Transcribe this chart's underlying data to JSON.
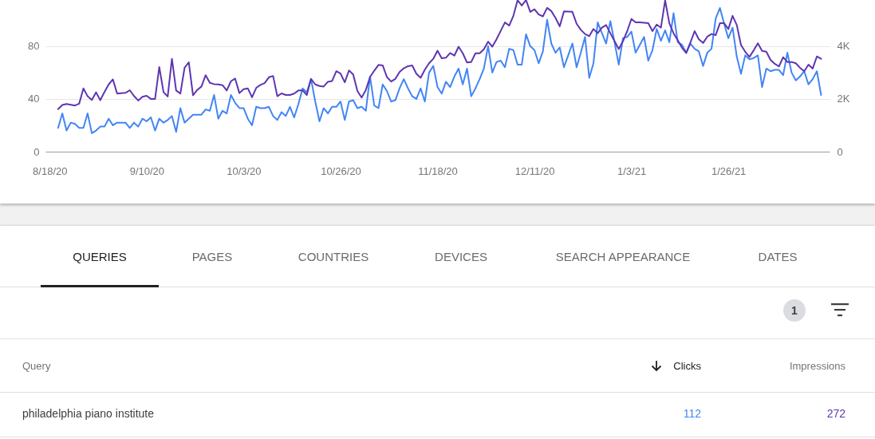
{
  "chart_data": [
    {
      "type": "line",
      "x": [
        "2020-08-20",
        "2020-08-21",
        "2020-08-22",
        "2020-08-23",
        "2020-08-24",
        "2020-08-25",
        "2020-08-26",
        "2020-08-27",
        "2020-08-28",
        "2020-08-29",
        "2020-08-30",
        "2020-08-31",
        "2020-09-01",
        "2020-09-02",
        "2020-09-03",
        "2020-09-04",
        "2020-09-05",
        "2020-09-06",
        "2020-09-07",
        "2020-09-08",
        "2020-09-09",
        "2020-09-10",
        "2020-09-11",
        "2020-09-12",
        "2020-09-13",
        "2020-09-14",
        "2020-09-15",
        "2020-09-16",
        "2020-09-17",
        "2020-09-18",
        "2020-09-19",
        "2020-09-20",
        "2020-09-21",
        "2020-09-22",
        "2020-09-23",
        "2020-09-24",
        "2020-09-25",
        "2020-09-26",
        "2020-09-27",
        "2020-09-28",
        "2020-09-29",
        "2020-09-30",
        "2020-10-01",
        "2020-10-02",
        "2020-10-03",
        "2020-10-04",
        "2020-10-05",
        "2020-10-06",
        "2020-10-07",
        "2020-10-08",
        "2020-10-09",
        "2020-10-10",
        "2020-10-11",
        "2020-10-12",
        "2020-10-13",
        "2020-10-14",
        "2020-10-15",
        "2020-10-16",
        "2020-10-17",
        "2020-10-18",
        "2020-10-19",
        "2020-10-20",
        "2020-10-21",
        "2020-10-22",
        "2020-10-23",
        "2020-10-24",
        "2020-10-25",
        "2020-10-26",
        "2020-10-27",
        "2020-10-28",
        "2020-10-29",
        "2020-10-30",
        "2020-10-31",
        "2020-11-01",
        "2020-11-02",
        "2020-11-03",
        "2020-11-04",
        "2020-11-05",
        "2020-11-06",
        "2020-11-07",
        "2020-11-08",
        "2020-11-09",
        "2020-11-10",
        "2020-11-11",
        "2020-11-12",
        "2020-11-13",
        "2020-11-14",
        "2020-11-15",
        "2020-11-16",
        "2020-11-17",
        "2020-11-18",
        "2020-11-19",
        "2020-11-20",
        "2020-11-21",
        "2020-11-22",
        "2020-11-23",
        "2020-11-24",
        "2020-11-25",
        "2020-11-26",
        "2020-11-27",
        "2020-11-28",
        "2020-11-29",
        "2020-11-30",
        "2020-12-01",
        "2020-12-02",
        "2020-12-03",
        "2020-12-04",
        "2020-12-05",
        "2020-12-06",
        "2020-12-07",
        "2020-12-08",
        "2020-12-09",
        "2020-12-10",
        "2020-12-11",
        "2020-12-12",
        "2020-12-13",
        "2020-12-14",
        "2020-12-15",
        "2020-12-16",
        "2020-12-17",
        "2020-12-18",
        "2020-12-19",
        "2020-12-20",
        "2020-12-21",
        "2020-12-22",
        "2020-12-23",
        "2020-12-24",
        "2020-12-25",
        "2020-12-26",
        "2020-12-27",
        "2020-12-28",
        "2020-12-29",
        "2020-12-30",
        "2020-12-31",
        "2021-01-01",
        "2021-01-02",
        "2021-01-03",
        "2021-01-04",
        "2021-01-05",
        "2021-01-06",
        "2021-01-07",
        "2021-01-08",
        "2021-01-09",
        "2021-01-10",
        "2021-01-11",
        "2021-01-12",
        "2021-01-13",
        "2021-01-14",
        "2021-01-15",
        "2021-01-16",
        "2021-01-17",
        "2021-01-18",
        "2021-01-19",
        "2021-01-20",
        "2021-01-21",
        "2021-01-22",
        "2021-01-23",
        "2021-01-24",
        "2021-01-25",
        "2021-01-26",
        "2021-01-27",
        "2021-01-28",
        "2021-01-29",
        "2021-01-30",
        "2021-01-31",
        "2021-02-01",
        "2021-02-02",
        "2021-02-03",
        "2021-02-04",
        "2021-02-05",
        "2021-02-06",
        "2021-02-07",
        "2021-02-08",
        "2021-02-09",
        "2021-02-10",
        "2021-02-11",
        "2021-02-12",
        "2021-02-13",
        "2021-02-14",
        "2021-02-15",
        "2021-02-16",
        "2021-02-17"
      ],
      "series": [
        {
          "color": "#4285f4",
          "values": [
            18,
            29,
            16,
            22,
            21,
            18,
            18,
            29,
            14,
            16,
            19,
            19,
            25,
            20,
            22,
            22,
            22,
            18,
            22,
            19,
            25,
            23,
            26,
            16,
            25,
            22,
            24,
            27,
            15,
            33,
            22,
            25,
            28,
            28,
            28,
            32,
            31,
            43,
            25,
            31,
            29,
            43,
            37,
            33,
            33,
            25,
            20,
            34,
            33,
            33,
            34,
            27,
            24,
            30,
            27,
            34,
            26,
            36,
            48,
            45,
            55,
            38,
            23,
            33,
            29,
            34,
            34,
            38,
            24,
            38,
            39,
            33,
            34,
            31,
            57,
            35,
            33,
            51,
            46,
            38,
            39,
            48,
            55,
            48,
            42,
            40,
            48,
            38,
            60,
            65,
            49,
            44,
            53,
            49,
            57,
            63,
            51,
            63,
            42,
            48,
            55,
            63,
            80,
            60,
            68,
            69,
            64,
            78,
            77,
            66,
            66,
            89,
            80,
            77,
            67,
            76,
            100,
            82,
            75,
            79,
            64,
            73,
            82,
            64,
            75,
            87,
            56,
            67,
            98,
            90,
            82,
            99,
            83,
            66,
            86,
            87,
            91,
            75,
            81,
            87,
            69,
            77,
            93,
            84,
            92,
            83,
            105,
            83,
            81,
            75,
            82,
            78,
            76,
            65,
            75,
            78,
            101,
            109,
            97,
            86,
            94,
            72,
            59,
            73,
            70,
            71,
            73,
            49,
            63,
            61,
            62,
            62,
            58,
            75,
            60,
            54,
            57,
            61,
            51,
            55,
            61,
            43
          ]
        },
        {
          "color": "#5e35b1",
          "axis": "y2",
          "values": [
            1610,
            1770,
            1810,
            1780,
            1750,
            1820,
            2400,
            2100,
            1960,
            2250,
            1950,
            2260,
            2550,
            2740,
            2200,
            2220,
            2230,
            2330,
            2110,
            1940,
            2080,
            2120,
            2000,
            2000,
            3210,
            2260,
            2090,
            3520,
            2320,
            2200,
            3180,
            3390,
            2140,
            2340,
            2470,
            2900,
            2610,
            2560,
            2550,
            2520,
            2320,
            2670,
            2770,
            2220,
            2370,
            2400,
            2060,
            2420,
            2530,
            2600,
            2820,
            2870,
            2100,
            2210,
            2150,
            2150,
            2200,
            2320,
            2320,
            2150,
            2760,
            2550,
            2490,
            2470,
            2650,
            2680,
            3050,
            2960,
            2630,
            3080,
            2930,
            2300,
            2050,
            2340,
            2830,
            3070,
            3290,
            3270,
            2830,
            2660,
            2760,
            3020,
            3160,
            3240,
            3270,
            2950,
            2800,
            3110,
            3350,
            3520,
            3830,
            3540,
            3560,
            3740,
            3640,
            3980,
            3730,
            3380,
            3400,
            3730,
            3730,
            3880,
            4170,
            3980,
            4260,
            4580,
            4900,
            4780,
            5150,
            5740,
            5540,
            5750,
            5300,
            5400,
            5200,
            5130,
            5450,
            5330,
            5070,
            4750,
            5320,
            5310,
            5300,
            4850,
            4620,
            4460,
            4380,
            4650,
            4490,
            4700,
            4800,
            4490,
            4190,
            3890,
            4190,
            4570,
            5030,
            4900,
            4900,
            4890,
            4870,
            4570,
            4820,
            4700,
            5740,
            4870,
            4490,
            4220,
            3940,
            3740,
            4140,
            4570,
            4260,
            4120,
            4360,
            4460,
            4420,
            4870,
            4870,
            4650,
            5150,
            4800,
            4040,
            3790,
            3590,
            3840,
            4110,
            3820,
            3790,
            3480,
            3330,
            3230,
            3580,
            3400,
            3400,
            3350,
            3180,
            3050,
            3300,
            3150,
            3610,
            3520
          ]
        }
      ],
      "xlim": [
        "2020-08-17",
        "2021-02-19"
      ],
      "xticks": [
        {
          "value": "2020-08-18",
          "label": "8/18/20"
        },
        {
          "value": "2020-09-10",
          "label": "9/10/20"
        },
        {
          "value": "2020-10-03",
          "label": "10/3/20"
        },
        {
          "value": "2020-10-26",
          "label": "10/26/20"
        },
        {
          "value": "2020-11-18",
          "label": "11/18/20"
        },
        {
          "value": "2020-12-11",
          "label": "12/11/20"
        },
        {
          "value": "2021-01-03",
          "label": "1/3/21"
        },
        {
          "value": "2021-01-26",
          "label": "1/26/21"
        }
      ],
      "ylim": [
        0,
        115
      ],
      "yticks": [
        0,
        40,
        80
      ],
      "y2lim": [
        0,
        5750
      ],
      "y2ticks": [
        0,
        {
          "value": 2000,
          "label": "2K"
        },
        {
          "value": 4000,
          "label": "4K"
        }
      ],
      "grid": "y"
    },
    {
      "type": "other",
      "annotations": [
        "QUERIES",
        "PAGES",
        "COUNTRIES",
        "DEVICES",
        "SEARCH APPEARANCE",
        "DATES",
        "1",
        "Query",
        "Clicks",
        "Impressions",
        "philadelphia piano institute",
        "112",
        "272"
      ]
    }
  ]
}
